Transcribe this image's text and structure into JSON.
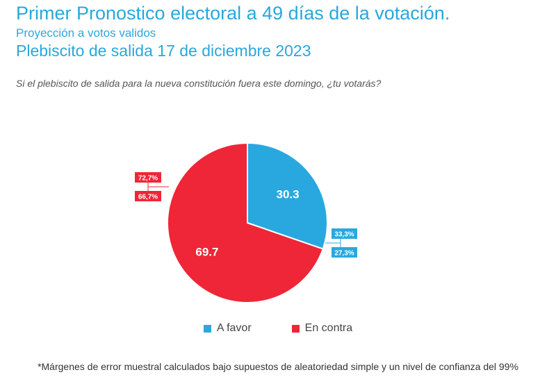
{
  "header": {
    "title": "Primer Pronostico electoral a 49 días de la votación.",
    "subtitle1": "Proyección a votos validos",
    "subtitle2": "Plebiscito de salida 17 de diciembre 2023",
    "question": "Si el plebiscito de salida para la nueva constitución fuera este domingo, ¿tu votarás?"
  },
  "chart_data": {
    "type": "pie",
    "categories": [
      "A favor",
      "En contra"
    ],
    "values": [
      30.3,
      69.7
    ],
    "colors": [
      "#29a8df",
      "#ef2637"
    ],
    "value_labels": [
      "30.3",
      "69.7"
    ],
    "annotations": {
      "a_favor": [
        "33,3%",
        "27,3%"
      ],
      "en_contra": [
        "72,7%",
        "66,7%"
      ]
    },
    "legend_position": "bottom"
  },
  "legend": [
    {
      "label": "A favor",
      "color": "#29a8df"
    },
    {
      "label": "En contra",
      "color": "#ef2637"
    }
  ],
  "footnote": "*Márgenes de error muestral calculados bajo supuestos de aleatoriedad simple y un nivel de confianza del 99%"
}
